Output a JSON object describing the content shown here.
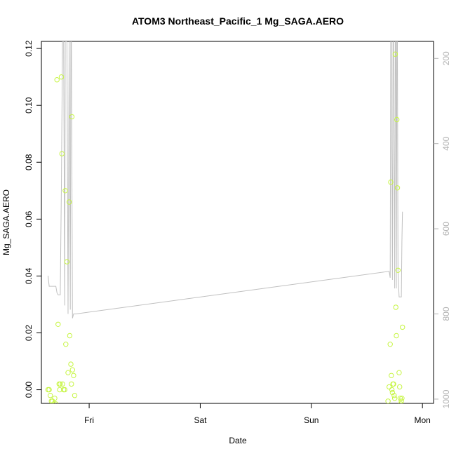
{
  "chart_data": {
    "type": "scatter",
    "title": "ATOM3 Northeast_Pacific_1 Mg_SAGA.AERO",
    "xlabel": "Date",
    "ylabel": "Mg_SAGA.AERO",
    "x_ticks": [
      "Fri",
      "Sat",
      "Sun",
      "Mon"
    ],
    "x_tick_positions_days": [
      0,
      1,
      2,
      3
    ],
    "xlim_days": [
      -0.43,
      3.1
    ],
    "y_ticks": [
      0.0,
      0.02,
      0.04,
      0.06,
      0.08,
      0.1,
      0.12
    ],
    "y_tick_labels": [
      "0.00",
      "0.02",
      "0.04",
      "0.06",
      "0.08",
      "0.10",
      "0.12"
    ],
    "ylim": [
      -0.0048,
      0.1225
    ],
    "y2_ticks": [
      200,
      400,
      600,
      800,
      1000
    ],
    "y2_tick_labels": [
      "200",
      "400",
      "600",
      "800",
      "1000"
    ],
    "y2lim_reversed": [
      1010,
      160
    ],
    "y2_description": "pressure (reversed axis, grey line)",
    "grid": false,
    "legend": "none",
    "colors": {
      "points": "#c6f542",
      "pressure_line": "#c0c0c0",
      "axis": "#000000",
      "right_axis": "#b0b0b0"
    },
    "series": [
      {
        "type": "scatter",
        "points": [
          [
            -0.37,
            0.0
          ],
          [
            -0.36,
            0.0
          ],
          [
            -0.35,
            -0.002
          ],
          [
            -0.34,
            -0.004
          ],
          [
            -0.33,
            -0.004
          ],
          [
            -0.32,
            -0.005
          ],
          [
            -0.31,
            -0.003
          ],
          [
            -0.3,
            -0.005
          ],
          [
            -0.29,
            0.109
          ],
          [
            -0.28,
            0.023
          ],
          [
            -0.27,
            0.002
          ],
          [
            -0.265,
            0.0
          ],
          [
            -0.26,
            0.002
          ],
          [
            -0.25,
            0.11
          ],
          [
            -0.245,
            0.083
          ],
          [
            -0.24,
            0.002
          ],
          [
            -0.23,
            0.0
          ],
          [
            -0.22,
            0.0
          ],
          [
            -0.215,
            0.07
          ],
          [
            -0.21,
            0.016
          ],
          [
            -0.2,
            0.045
          ],
          [
            -0.19,
            0.006
          ],
          [
            -0.18,
            0.066
          ],
          [
            -0.175,
            0.019
          ],
          [
            -0.165,
            0.009
          ],
          [
            -0.16,
            0.002
          ],
          [
            -0.155,
            0.096
          ],
          [
            -0.15,
            0.007
          ],
          [
            -0.14,
            0.005
          ],
          [
            -0.13,
            -0.002
          ],
          [
            2.69,
            -0.004
          ],
          [
            2.7,
            0.001
          ],
          [
            2.71,
            0.016
          ],
          [
            2.715,
            0.073
          ],
          [
            2.72,
            0.005
          ],
          [
            2.725,
            0.0
          ],
          [
            2.73,
            -0.001
          ],
          [
            2.735,
            0.002
          ],
          [
            2.74,
            0.002
          ],
          [
            2.745,
            -0.002
          ],
          [
            2.75,
            -0.003
          ],
          [
            2.755,
            0.118
          ],
          [
            2.76,
            0.029
          ],
          [
            2.765,
            0.019
          ],
          [
            2.77,
            0.095
          ],
          [
            2.775,
            0.071
          ],
          [
            2.78,
            0.042
          ],
          [
            2.79,
            0.006
          ],
          [
            2.795,
            0.001
          ],
          [
            2.8,
            -0.003
          ],
          [
            2.805,
            -0.005
          ],
          [
            2.81,
            -0.004
          ],
          [
            2.815,
            -0.003
          ],
          [
            2.82,
            0.022
          ]
        ]
      },
      {
        "type": "line",
        "axis": "right",
        "points": [
          [
            -0.37,
            710
          ],
          [
            -0.36,
            735
          ],
          [
            -0.3,
            735
          ],
          [
            -0.29,
            750
          ],
          [
            -0.28,
            755
          ],
          [
            -0.26,
            755
          ],
          [
            -0.25,
            500
          ],
          [
            -0.24,
            160
          ],
          [
            -0.23,
            160
          ],
          [
            -0.22,
            780
          ],
          [
            -0.215,
            160
          ],
          [
            -0.2,
            160
          ],
          [
            -0.19,
            800
          ],
          [
            -0.18,
            160
          ],
          [
            -0.17,
            790
          ],
          [
            -0.165,
            160
          ],
          [
            -0.16,
            160
          ],
          [
            -0.15,
            810
          ],
          [
            -0.14,
            800
          ],
          [
            -0.12,
            800
          ],
          [
            2.7,
            700
          ],
          [
            2.71,
            715
          ],
          [
            2.715,
            160
          ],
          [
            2.72,
            160
          ],
          [
            2.73,
            720
          ],
          [
            2.735,
            160
          ],
          [
            2.74,
            160
          ],
          [
            2.75,
            740
          ],
          [
            2.755,
            160
          ],
          [
            2.76,
            160
          ],
          [
            2.765,
            740
          ],
          [
            2.77,
            160
          ],
          [
            2.775,
            160
          ],
          [
            2.78,
            700
          ],
          [
            2.79,
            760
          ],
          [
            2.8,
            760
          ],
          [
            2.81,
            760
          ],
          [
            2.815,
            630
          ],
          [
            2.82,
            560
          ]
        ]
      }
    ]
  }
}
